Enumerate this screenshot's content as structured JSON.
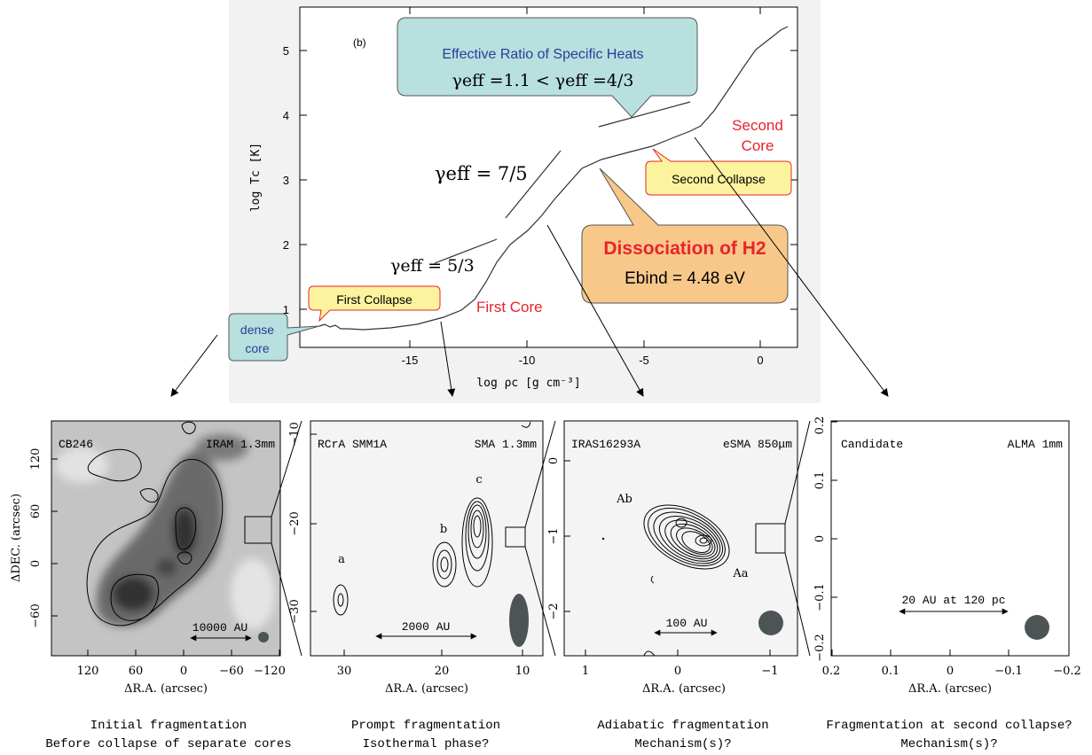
{
  "top_panel": {
    "panel_tag": "(b)",
    "x_label": "log ρc [g cm⁻³]",
    "y_label": "log Tc [K]",
    "x_ticks": [
      "-15",
      "-10",
      "-5",
      "0"
    ],
    "y_ticks": [
      "1",
      "2",
      "3",
      "4",
      "5"
    ],
    "callout_ratio": {
      "title": "Effective Ratio of Specific Heats",
      "formula": "γeff =1.1 < γeff =4/3"
    },
    "gamma_75": "γeff = 7/5",
    "gamma_53": "γeff = 5/3",
    "first_collapse": "First Collapse",
    "second_collapse": "Second Collapse",
    "dense_core": [
      "dense",
      "core"
    ],
    "first_core": "First Core",
    "second_core": [
      "Second",
      "Core"
    ],
    "dissociation": {
      "title": "Dissociation of H2",
      "energy": "Ebind = 4.48 eV"
    },
    "colors": {
      "red_text": "#e8232a",
      "blue_text": "#2b3d97",
      "teal_fill": "#b7e0df",
      "yellow_fill": "#fbf39d",
      "orange_fill": "#f8c88b"
    }
  },
  "panels": [
    {
      "name": "CB246",
      "instrument": "IRAM 1.3mm",
      "scale": "10000 AU",
      "x_label": "ΔR.A. (arcsec)",
      "y_label": "ΔDEC. (arcsec)",
      "x_ticks": [
        "120",
        "60",
        "0",
        "−60",
        "−120"
      ],
      "y_ticks": [
        "120",
        "60",
        "0",
        "−60"
      ],
      "caption": [
        "Initial fragmentation",
        "Before collapse of separate cores"
      ]
    },
    {
      "name": "RCrA SMM1A",
      "instrument": "SMA 1.3mm",
      "scale": "2000 AU",
      "x_label": "ΔR.A. (arcsec)",
      "x_ticks": [
        "30",
        "20",
        "10"
      ],
      "y_ticks": [
        "−10",
        "−20",
        "−30"
      ],
      "sources": [
        "a",
        "b",
        "c"
      ],
      "caption": [
        "Prompt fragmentation",
        "Isothermal phase?"
      ]
    },
    {
      "name": "IRAS16293A",
      "instrument": "eSMA 850μm",
      "scale": "100 AU",
      "x_label": "ΔR.A. (arcsec)",
      "x_ticks": [
        "1",
        "0",
        "−1"
      ],
      "y_ticks": [
        "0",
        "−1",
        "−2"
      ],
      "sources": [
        "Ab",
        "Aa"
      ],
      "caption": [
        "Adiabatic fragmentation",
        "Mechanism(s)?"
      ]
    },
    {
      "name": "Candidate",
      "instrument": "ALMA 1mm",
      "scale": "20 AU at 120 pc",
      "x_label": "ΔR.A. (arcsec)",
      "x_ticks": [
        "0.2",
        "0.1",
        "0",
        "−0.1",
        "−0.2"
      ],
      "y_ticks": [
        "0.2",
        "0.1",
        "0",
        "−0.1",
        "−0.2"
      ],
      "caption": [
        "Fragmentation at second collapse?",
        "Mechanism(s)?"
      ]
    }
  ]
}
